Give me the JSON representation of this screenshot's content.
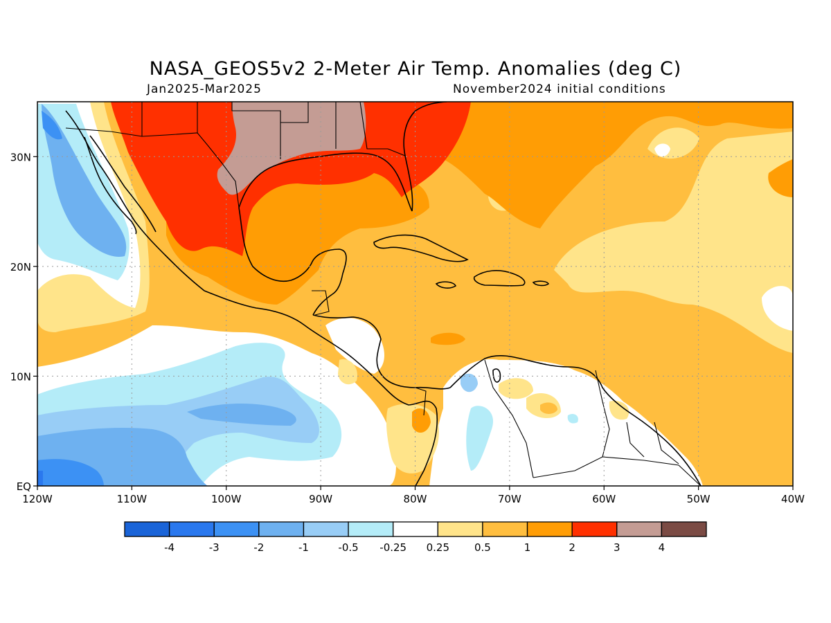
{
  "title": "NASA_GEOS5v2 2-Meter Air Temp. Anomalies (deg C)",
  "subtitle_left": "Jan2025-Mar2025",
  "subtitle_right": "November2024 initial conditions",
  "map": {
    "region": "Caribbean / Gulf of Mexico / Central America",
    "lon_range": [
      -120,
      -40
    ],
    "lat_range": [
      0,
      35
    ],
    "lat_ticks": [
      {
        "value": 30,
        "label": "30N"
      },
      {
        "value": 20,
        "label": "20N"
      },
      {
        "value": 10,
        "label": "10N"
      },
      {
        "value": 0,
        "label": "EQ"
      }
    ],
    "lon_ticks": [
      {
        "value": -120,
        "label": "120W"
      },
      {
        "value": -110,
        "label": "110W"
      },
      {
        "value": -100,
        "label": "100W"
      },
      {
        "value": -90,
        "label": "90W"
      },
      {
        "value": -80,
        "label": "80W"
      },
      {
        "value": -70,
        "label": "70W"
      },
      {
        "value": -60,
        "label": "60W"
      },
      {
        "value": -50,
        "label": "50W"
      },
      {
        "value": -40,
        "label": "40W"
      }
    ],
    "grid": "dotted"
  },
  "colorbar": {
    "colors": [
      "#1a64d8",
      "#2a78ee",
      "#3c91f4",
      "#6eb1f0",
      "#98cdf6",
      "#b4ecf8",
      "#ffffff",
      "#ffe48a",
      "#ffbe3f",
      "#ff9d05",
      "#ff3000",
      "#c49c94",
      "#7b4b44"
    ],
    "labels": [
      "-4",
      "-3",
      "-2",
      "-1",
      "-0.5",
      "-0.25",
      "0.25",
      "0.5",
      "1",
      "2",
      "3",
      "4"
    ]
  },
  "palette": {
    "ocean_default": "#ffbe3f",
    "light_yellow": "#ffe48a",
    "orange": "#ff9d05",
    "red": "#ff3000",
    "brown": "#c49c94",
    "white": "#ffffff",
    "light_cyan": "#b4ecf8",
    "light_blue": "#98cdf6",
    "blue": "#6eb1f0",
    "deep_blue": "#3c91f4",
    "deepest_blue": "#2a78ee"
  }
}
